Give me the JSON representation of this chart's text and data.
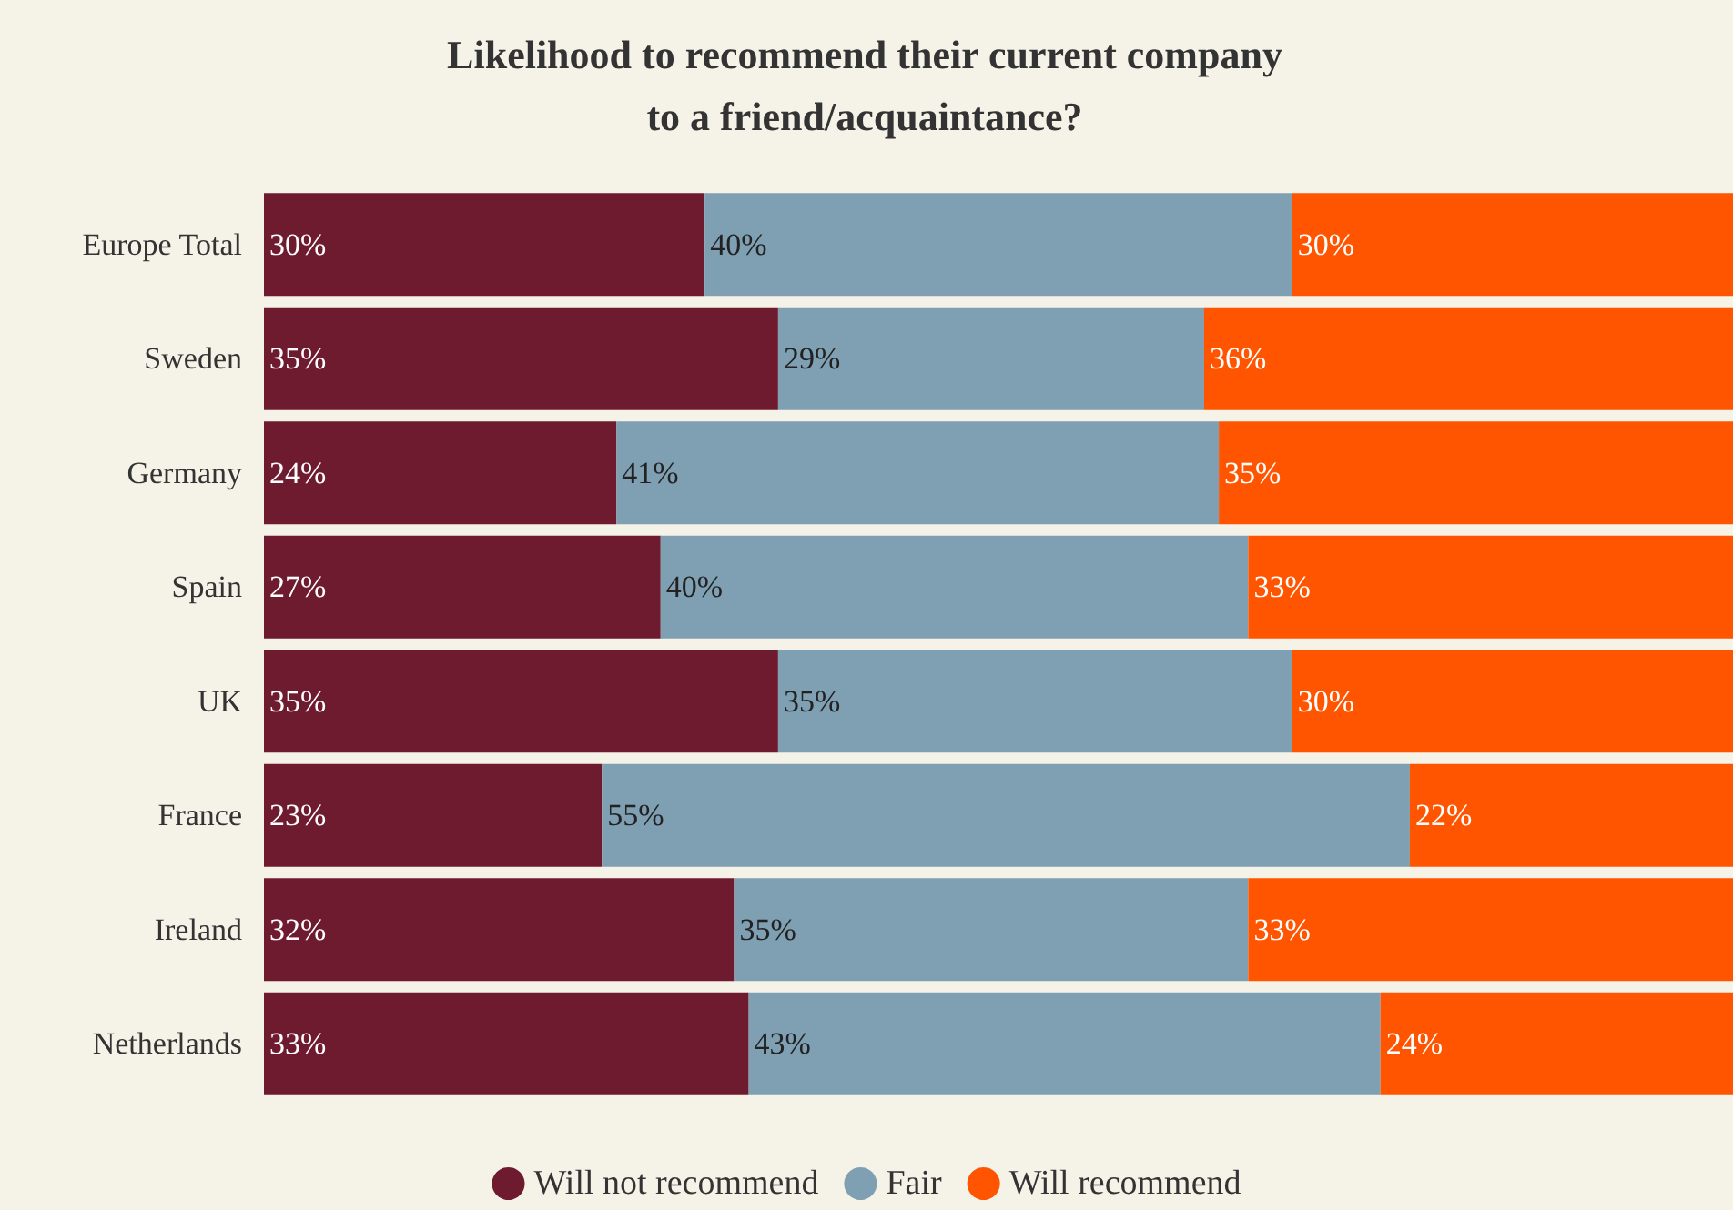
{
  "chart_data": {
    "type": "bar",
    "orientation": "horizontal",
    "stacked": true,
    "title": "Likelihood to recommend their current company\nto a friend/acquaintance?",
    "categories": [
      "Europe Total",
      "Sweden",
      "Germany",
      "Spain",
      "UK",
      "France",
      "Ireland",
      "Netherlands"
    ],
    "series": [
      {
        "name": "Will not recommend",
        "color": "#6e1a2f",
        "values": [
          30,
          35,
          24,
          27,
          35,
          23,
          32,
          33
        ],
        "value_labels": [
          "30%",
          "35%",
          "24%",
          "27%",
          "35%",
          "23%",
          "32%",
          "33%"
        ]
      },
      {
        "name": "Fair",
        "color": "#7f9fb3",
        "values": [
          40,
          29,
          41,
          40,
          35,
          55,
          35,
          43
        ],
        "value_labels": [
          "40%",
          "29%",
          "41%",
          "40%",
          "35%",
          "55%",
          "35%",
          "43%"
        ]
      },
      {
        "name": "Will recommend",
        "color": "#ff5500",
        "values": [
          30,
          36,
          35,
          33,
          30,
          22,
          33,
          24
        ],
        "value_labels": [
          "30%",
          "36%",
          "35%",
          "33%",
          "30%",
          "22%",
          "33%",
          "24%"
        ]
      }
    ],
    "legend": "bottom"
  }
}
